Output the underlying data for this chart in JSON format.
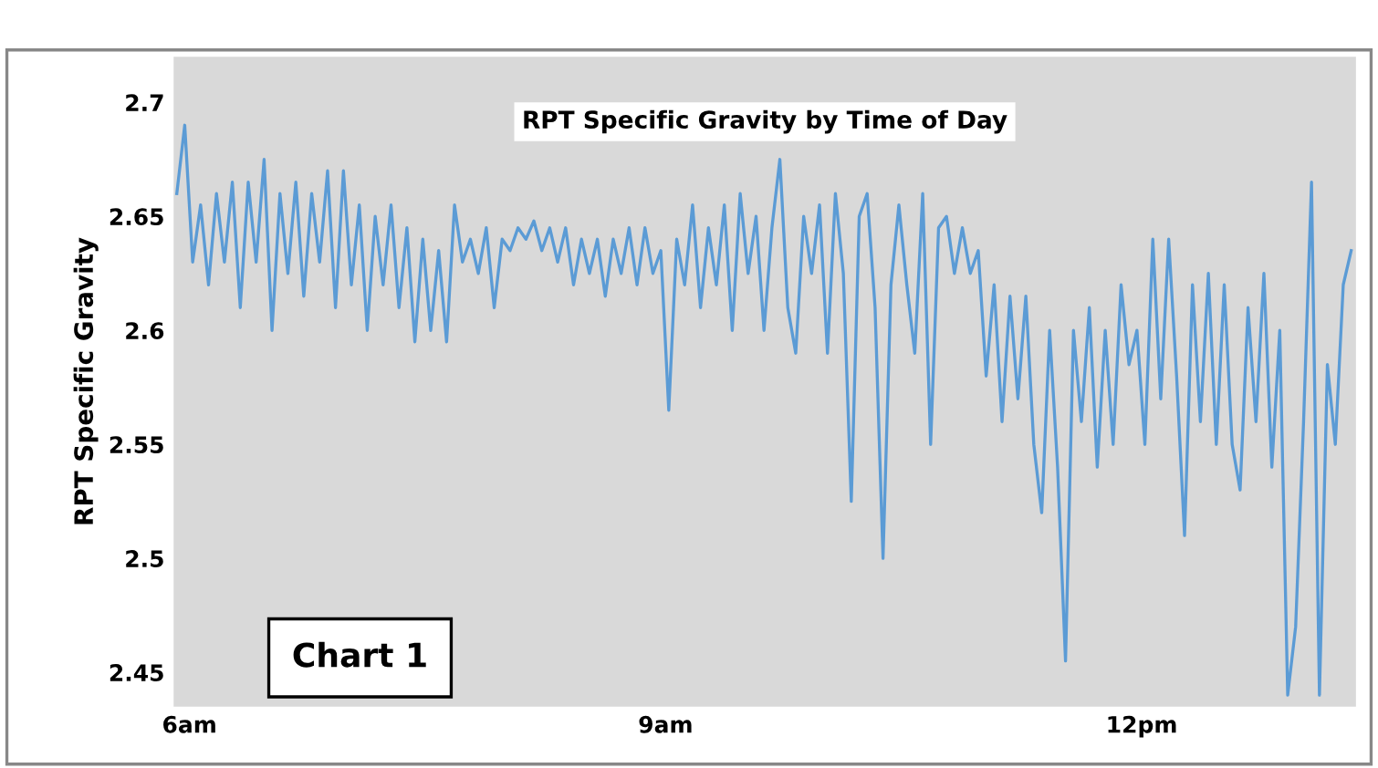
{
  "chart_data": {
    "type": "line",
    "title": "RPT Specific Gravity by Time of Day",
    "ylabel": "RPT Specific Gravity",
    "annotations": [
      "Chart 1"
    ],
    "xlim": [
      5.9,
      13.35
    ],
    "xticks": [
      {
        "value": 6,
        "label": "6am"
      },
      {
        "value": 9,
        "label": "9am"
      },
      {
        "value": 12,
        "label": "12pm"
      }
    ],
    "ylim": [
      2.435,
      2.72
    ],
    "yticks": [
      2.45,
      2.5,
      2.55,
      2.6,
      2.65,
      2.7
    ],
    "grid": false,
    "legend": false,
    "marker": "none",
    "line_style": "solid",
    "series": [
      {
        "color": "#5b9bd5",
        "x": [
          5.92,
          5.97,
          6.02,
          6.07,
          6.12,
          6.17,
          6.22,
          6.27,
          6.32,
          6.37,
          6.42,
          6.47,
          6.52,
          6.57,
          6.62,
          6.67,
          6.72,
          6.77,
          6.82,
          6.87,
          6.92,
          6.97,
          7.02,
          7.07,
          7.12,
          7.17,
          7.22,
          7.27,
          7.32,
          7.37,
          7.42,
          7.47,
          7.52,
          7.57,
          7.62,
          7.67,
          7.72,
          7.77,
          7.82,
          7.87,
          7.92,
          7.97,
          8.02,
          8.07,
          8.12,
          8.17,
          8.22,
          8.27,
          8.32,
          8.37,
          8.42,
          8.47,
          8.52,
          8.57,
          8.62,
          8.67,
          8.72,
          8.77,
          8.82,
          8.87,
          8.92,
          8.97,
          9.02,
          9.07,
          9.12,
          9.17,
          9.22,
          9.27,
          9.32,
          9.37,
          9.42,
          9.47,
          9.52,
          9.57,
          9.62,
          9.67,
          9.72,
          9.77,
          9.82,
          9.87,
          9.92,
          9.97,
          10.02,
          10.07,
          10.12,
          10.17,
          10.22,
          10.27,
          10.32,
          10.37,
          10.42,
          10.47,
          10.52,
          10.57,
          10.62,
          10.67,
          10.72,
          10.77,
          10.82,
          10.87,
          10.92,
          10.97,
          11.02,
          11.07,
          11.12,
          11.17,
          11.22,
          11.27,
          11.32,
          11.37,
          11.42,
          11.47,
          11.52,
          11.57,
          11.62,
          11.67,
          11.72,
          11.77,
          11.82,
          11.87,
          11.92,
          11.97,
          12.02,
          12.07,
          12.12,
          12.17,
          12.22,
          12.27,
          12.32,
          12.37,
          12.42,
          12.47,
          12.52,
          12.57,
          12.62,
          12.67,
          12.72,
          12.77,
          12.82,
          12.87,
          12.92,
          12.97,
          13.02,
          13.07,
          13.12,
          13.17,
          13.22,
          13.27,
          13.32
        ],
        "values": [
          2.66,
          2.69,
          2.63,
          2.655,
          2.62,
          2.66,
          2.63,
          2.665,
          2.61,
          2.665,
          2.63,
          2.675,
          2.6,
          2.66,
          2.625,
          2.665,
          2.615,
          2.66,
          2.63,
          2.67,
          2.61,
          2.67,
          2.62,
          2.655,
          2.6,
          2.65,
          2.62,
          2.655,
          2.61,
          2.645,
          2.595,
          2.64,
          2.6,
          2.635,
          2.595,
          2.655,
          2.63,
          2.64,
          2.625,
          2.645,
          2.61,
          2.64,
          2.635,
          2.645,
          2.64,
          2.648,
          2.635,
          2.645,
          2.63,
          2.645,
          2.62,
          2.64,
          2.625,
          2.64,
          2.615,
          2.64,
          2.625,
          2.645,
          2.62,
          2.645,
          2.625,
          2.635,
          2.565,
          2.64,
          2.62,
          2.655,
          2.61,
          2.645,
          2.62,
          2.655,
          2.6,
          2.66,
          2.625,
          2.65,
          2.6,
          2.645,
          2.675,
          2.61,
          2.59,
          2.65,
          2.625,
          2.655,
          2.59,
          2.66,
          2.625,
          2.525,
          2.65,
          2.66,
          2.61,
          2.5,
          2.62,
          2.655,
          2.62,
          2.59,
          2.66,
          2.55,
          2.645,
          2.65,
          2.625,
          2.645,
          2.625,
          2.635,
          2.58,
          2.62,
          2.56,
          2.615,
          2.57,
          2.615,
          2.55,
          2.52,
          2.6,
          2.54,
          2.455,
          2.6,
          2.56,
          2.61,
          2.54,
          2.6,
          2.55,
          2.62,
          2.585,
          2.6,
          2.55,
          2.64,
          2.57,
          2.64,
          2.58,
          2.51,
          2.62,
          2.56,
          2.625,
          2.55,
          2.62,
          2.55,
          2.53,
          2.61,
          2.56,
          2.625,
          2.54,
          2.6,
          2.44,
          2.47,
          2.56,
          2.665,
          2.44,
          2.585,
          2.55,
          2.62,
          2.635
        ]
      }
    ]
  }
}
